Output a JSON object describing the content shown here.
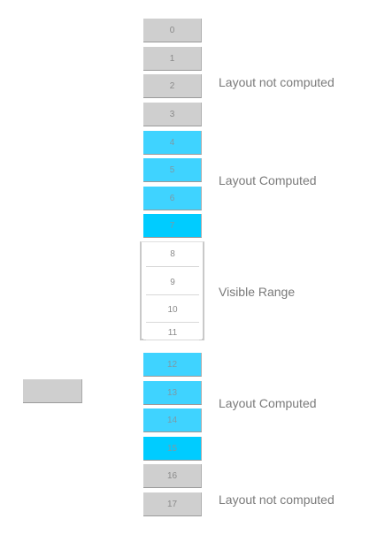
{
  "items": [
    "0",
    "1",
    "2",
    "3",
    "4",
    "5",
    "6",
    "7",
    "8",
    "9",
    "10",
    "11",
    "12",
    "13",
    "14",
    "15",
    "16",
    "17"
  ],
  "item_states": [
    "not_computed",
    "not_computed",
    "not_computed",
    "not_computed",
    "computed",
    "computed",
    "computed",
    "computed",
    "visible",
    "visible",
    "visible",
    "visible",
    "computed",
    "computed",
    "computed",
    "computed",
    "not_computed",
    "not_computed"
  ],
  "labels": {
    "top_not_computed": "Layout not computed",
    "top_computed": "Layout Computed",
    "visible": "Visible Range",
    "bottom_computed": "Layout Computed",
    "bottom_not_computed": "Layout not computed"
  },
  "colors": {
    "not_computed": "#cfcfcf",
    "computed": "#3fd3ff",
    "computed_edge": "#00ccff",
    "visible": "#ffffff"
  }
}
